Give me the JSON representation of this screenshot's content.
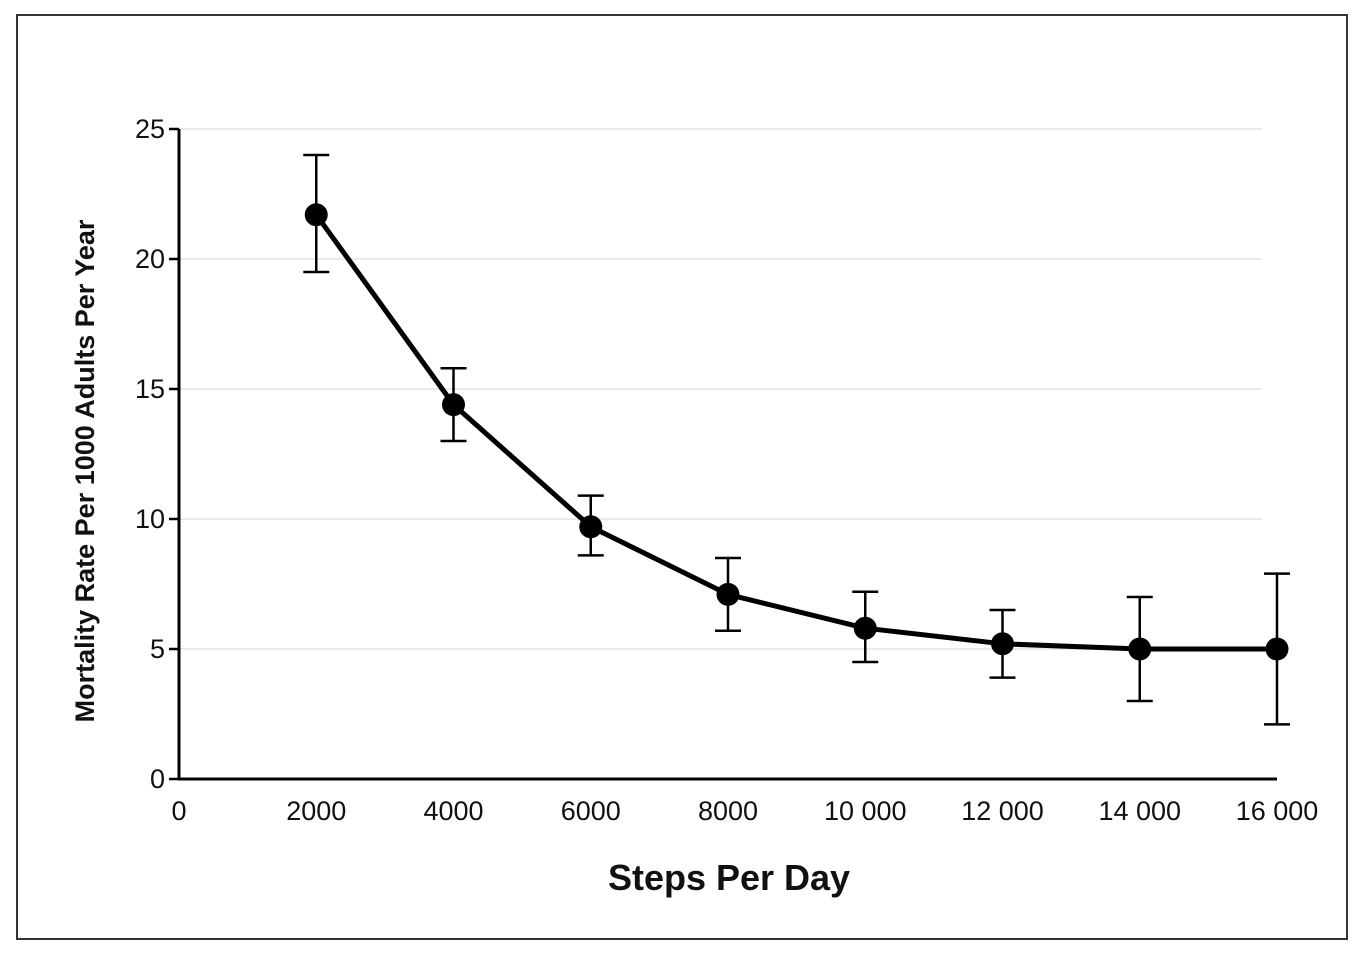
{
  "chart_data": {
    "type": "line",
    "title": "",
    "xlabel": "Steps Per Day",
    "ylabel": "Mortality Rate Per 1000 Adults Per Year",
    "x_ticks": [
      {
        "value": 0,
        "label": "0"
      },
      {
        "value": 2000,
        "label": "2000"
      },
      {
        "value": 4000,
        "label": "4000"
      },
      {
        "value": 6000,
        "label": "6000"
      },
      {
        "value": 8000,
        "label": "8000"
      },
      {
        "value": 10000,
        "label": "10 000"
      },
      {
        "value": 12000,
        "label": "12 000"
      },
      {
        "value": 14000,
        "label": "14 000"
      },
      {
        "value": 16000,
        "label": "16 000"
      }
    ],
    "y_ticks": [
      {
        "value": 0,
        "label": "0"
      },
      {
        "value": 5,
        "label": "5"
      },
      {
        "value": 10,
        "label": "10"
      },
      {
        "value": 15,
        "label": "15"
      },
      {
        "value": 20,
        "label": "20"
      },
      {
        "value": 25,
        "label": "25"
      }
    ],
    "xlim": [
      0,
      16000
    ],
    "ylim": [
      0,
      25
    ],
    "grid": "horizontal",
    "legend": "none",
    "series": [
      {
        "x": [
          2000,
          4000,
          6000,
          8000,
          10000,
          12000,
          14000,
          16000
        ],
        "y": [
          21.7,
          14.4,
          9.7,
          7.1,
          5.8,
          5.2,
          5.0,
          5.0
        ],
        "ci_low": [
          19.5,
          13.0,
          8.6,
          5.7,
          4.5,
          3.9,
          3.0,
          2.1
        ],
        "ci_high": [
          24.0,
          15.8,
          10.9,
          8.5,
          7.2,
          6.5,
          7.0,
          7.9
        ],
        "color": "#000000"
      }
    ]
  }
}
